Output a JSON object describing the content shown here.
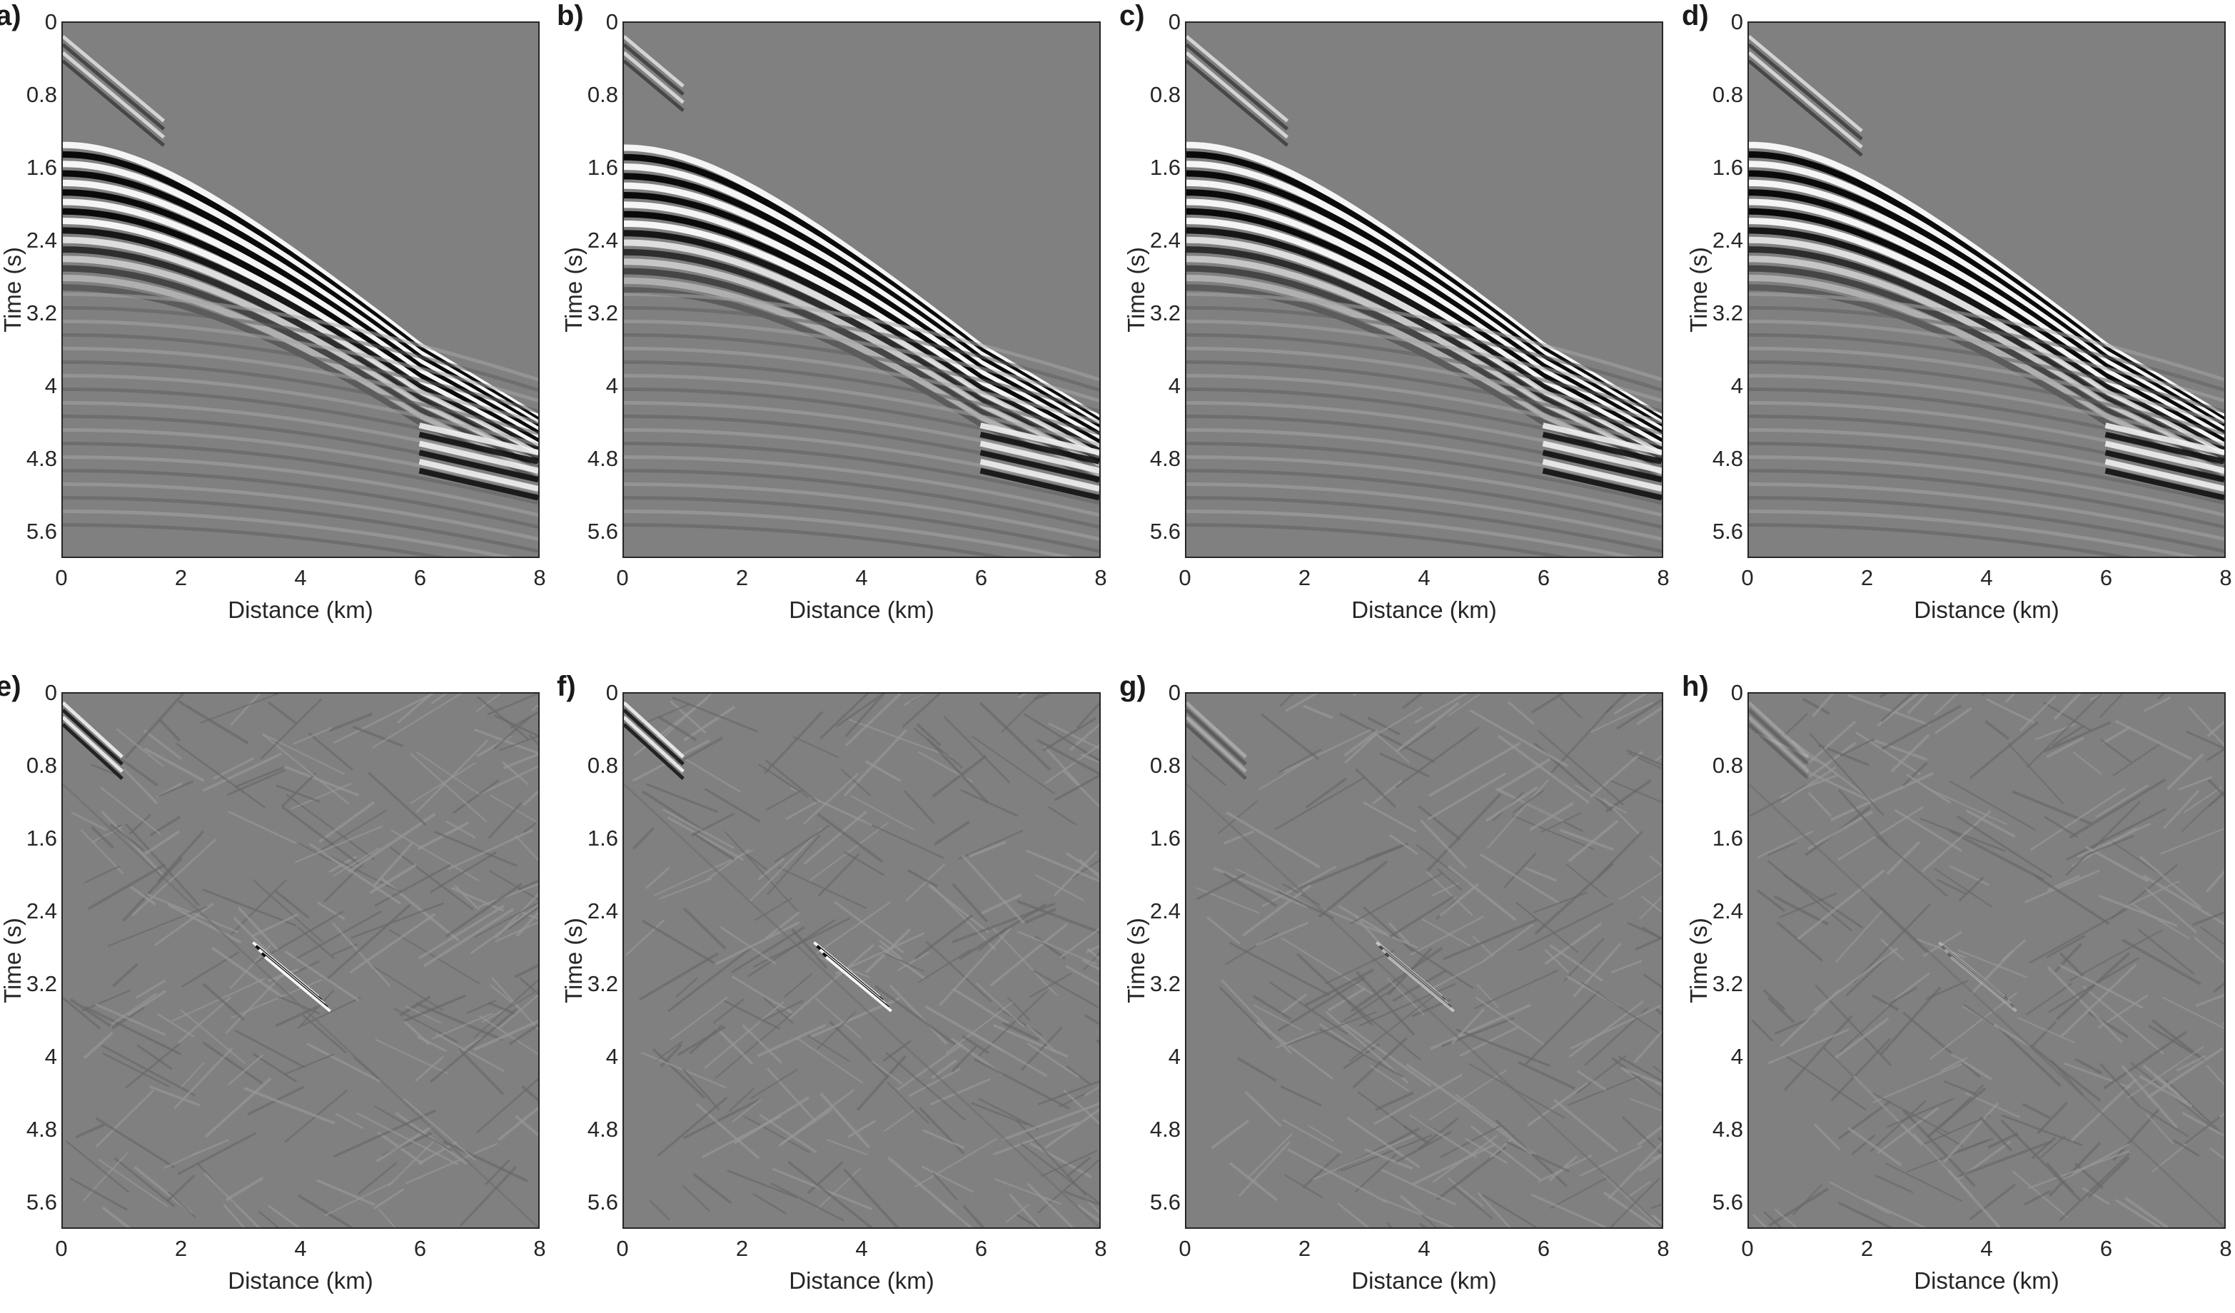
{
  "panels": [
    {
      "label": "a)",
      "kind": "gather",
      "variant": 0
    },
    {
      "label": "b)",
      "kind": "gather",
      "variant": 1
    },
    {
      "label": "c)",
      "kind": "gather",
      "variant": 2
    },
    {
      "label": "d)",
      "kind": "gather",
      "variant": 3
    },
    {
      "label": "e)",
      "kind": "residual",
      "variant": 0
    },
    {
      "label": "f)",
      "kind": "residual",
      "variant": 1
    },
    {
      "label": "g)",
      "kind": "residual",
      "variant": 2
    },
    {
      "label": "h)",
      "kind": "residual",
      "variant": 3
    }
  ],
  "axes": {
    "xlabel": "Distance (km)",
    "ylabel": "Time (s)",
    "x_ticks": [
      "0",
      "2",
      "4",
      "6",
      "8"
    ],
    "y_ticks": [
      "0",
      "0.8",
      "1.6",
      "2.4",
      "3.2",
      "4",
      "4.8",
      "5.6"
    ],
    "x_range": [
      0,
      8
    ],
    "y_range": [
      0,
      5.9
    ]
  },
  "colors": {
    "background_gray": "#808080",
    "peak": "#ffffff",
    "trough": "#000000"
  }
}
